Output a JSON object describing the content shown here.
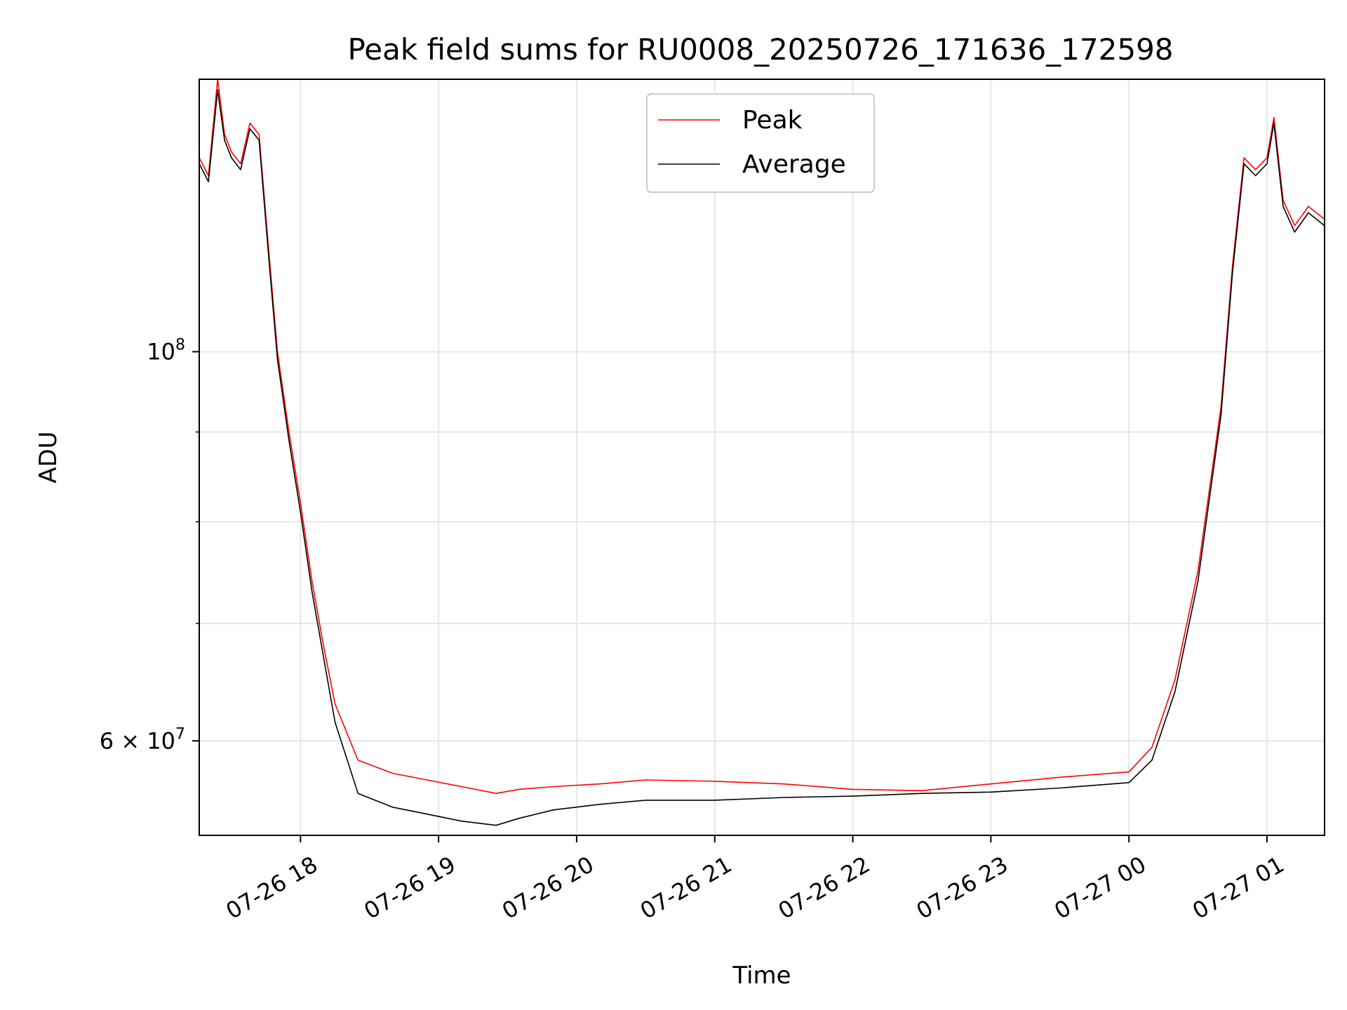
{
  "chart_data": {
    "type": "line",
    "title": "Peak field sums for RU0008_20250726_171636_172598",
    "xlabel": "Time",
    "ylabel": "ADU",
    "x_axis": {
      "kind": "datetime",
      "range": [
        "2025-07-26 17:16",
        "2025-07-27 01:25"
      ],
      "tick_labels": [
        "07-26 18",
        "07-26 19",
        "07-26 20",
        "07-26 21",
        "07-26 22",
        "07-26 23",
        "07-27 00",
        "07-27 01"
      ],
      "tick_values": [
        "2025-07-26 18:00",
        "2025-07-26 19:00",
        "2025-07-26 20:00",
        "2025-07-26 21:00",
        "2025-07-26 22:00",
        "2025-07-26 23:00",
        "2025-07-27 00:00",
        "2025-07-27 01:00"
      ]
    },
    "y_axis": {
      "scale": "log",
      "range": [
        53000000,
        143000000
      ],
      "major_ticks": [
        {
          "value": 100000000,
          "base": "10",
          "exp": "8"
        },
        {
          "value": 60000000,
          "base": "6 × 10",
          "exp": "7"
        }
      ],
      "minor_ticks": [
        70000000,
        80000000,
        90000000
      ]
    },
    "grid": true,
    "legend": {
      "position": "upper-center",
      "entries": [
        "Peak",
        "Average"
      ]
    },
    "series": [
      {
        "name": "Peak",
        "color": "#ff0000",
        "x": [
          "2025-07-26 17:16",
          "2025-07-26 17:20",
          "2025-07-26 17:24",
          "2025-07-26 17:27",
          "2025-07-26 17:30",
          "2025-07-26 17:34",
          "2025-07-26 17:38",
          "2025-07-26 17:42",
          "2025-07-26 17:46",
          "2025-07-26 17:50",
          "2025-07-26 17:55",
          "2025-07-26 18:00",
          "2025-07-26 18:05",
          "2025-07-26 18:10",
          "2025-07-26 18:15",
          "2025-07-26 18:25",
          "2025-07-26 18:40",
          "2025-07-26 18:55",
          "2025-07-26 19:10",
          "2025-07-26 19:25",
          "2025-07-26 19:35",
          "2025-07-26 19:50",
          "2025-07-26 20:10",
          "2025-07-26 20:30",
          "2025-07-26 21:00",
          "2025-07-26 21:30",
          "2025-07-26 22:00",
          "2025-07-26 22:30",
          "2025-07-26 23:00",
          "2025-07-26 23:30",
          "2025-07-27 00:00",
          "2025-07-27 00:10",
          "2025-07-27 00:20",
          "2025-07-27 00:30",
          "2025-07-27 00:40",
          "2025-07-27 00:45",
          "2025-07-27 00:50",
          "2025-07-27 00:55",
          "2025-07-27 01:00",
          "2025-07-27 01:03",
          "2025-07-27 01:07",
          "2025-07-27 01:12",
          "2025-07-27 01:18",
          "2025-07-27 01:25"
        ],
        "y": [
          129000000,
          126000000,
          143000000,
          133000000,
          130000000,
          128000000,
          135000000,
          133000000,
          115000000,
          100000000,
          90000000,
          82000000,
          74000000,
          68000000,
          63000000,
          58500000,
          57500000,
          57000000,
          56500000,
          56000000,
          56300000,
          56500000,
          56700000,
          57000000,
          56900000,
          56700000,
          56300000,
          56200000,
          56700000,
          57200000,
          57600000,
          59500000,
          65000000,
          75000000,
          93000000,
          112000000,
          129000000,
          127000000,
          129000000,
          136000000,
          122000000,
          118000000,
          121000000,
          119000000
        ]
      },
      {
        "name": "Average",
        "color": "#000000",
        "x": [
          "2025-07-26 17:16",
          "2025-07-26 17:20",
          "2025-07-26 17:24",
          "2025-07-26 17:27",
          "2025-07-26 17:30",
          "2025-07-26 17:34",
          "2025-07-26 17:38",
          "2025-07-26 17:42",
          "2025-07-26 17:46",
          "2025-07-26 17:50",
          "2025-07-26 17:55",
          "2025-07-26 18:00",
          "2025-07-26 18:05",
          "2025-07-26 18:10",
          "2025-07-26 18:15",
          "2025-07-26 18:25",
          "2025-07-26 18:40",
          "2025-07-26 18:55",
          "2025-07-26 19:10",
          "2025-07-26 19:25",
          "2025-07-26 19:35",
          "2025-07-26 19:50",
          "2025-07-26 20:10",
          "2025-07-26 20:30",
          "2025-07-26 21:00",
          "2025-07-26 21:30",
          "2025-07-26 22:00",
          "2025-07-26 22:30",
          "2025-07-26 23:00",
          "2025-07-26 23:30",
          "2025-07-27 00:00",
          "2025-07-27 00:10",
          "2025-07-27 00:20",
          "2025-07-27 00:30",
          "2025-07-27 00:40",
          "2025-07-27 00:45",
          "2025-07-27 00:50",
          "2025-07-27 00:55",
          "2025-07-27 01:00",
          "2025-07-27 01:03",
          "2025-07-27 01:07",
          "2025-07-27 01:12",
          "2025-07-27 01:18",
          "2025-07-27 01:25"
        ],
        "y": [
          128000000,
          125000000,
          141000000,
          132000000,
          129000000,
          127000000,
          134000000,
          132000000,
          114000000,
          99000000,
          89000000,
          81000000,
          73000000,
          67000000,
          61500000,
          56000000,
          55000000,
          54500000,
          54000000,
          53700000,
          54200000,
          54800000,
          55200000,
          55500000,
          55500000,
          55700000,
          55800000,
          56000000,
          56100000,
          56400000,
          56800000,
          58500000,
          64000000,
          74000000,
          92000000,
          111000000,
          128000000,
          126000000,
          128000000,
          135000000,
          121000000,
          117000000,
          120000000,
          118000000
        ]
      }
    ]
  }
}
